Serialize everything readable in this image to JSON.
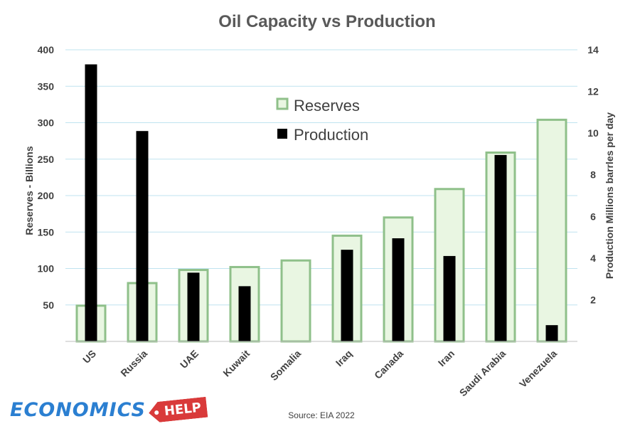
{
  "chart_data": {
    "type": "bar",
    "title": "Oil Capacity vs Production",
    "categories": [
      "US",
      "Russia",
      "UAE",
      "Kuwait",
      "Somalia",
      "Iraq",
      "Canada",
      "Iran",
      "Saudi Arabia",
      "Venezuela"
    ],
    "series": [
      {
        "name": "Reserves",
        "axis": "left",
        "color": "#8fc08a",
        "fill": "#e9f6e2",
        "values": [
          49,
          80,
          98,
          102,
          111,
          145,
          170,
          209,
          259,
          304
        ]
      },
      {
        "name": "Production",
        "axis": "right",
        "color": "#000000",
        "values": [
          13.3,
          10.1,
          3.3,
          2.65,
          null,
          4.4,
          4.95,
          4.1,
          8.95,
          0.78
        ]
      }
    ],
    "y_left": {
      "label": "Reserves - Billions",
      "range": [
        0,
        400
      ],
      "ticks": [
        50,
        100,
        150,
        200,
        250,
        300,
        350,
        400
      ]
    },
    "y_right": {
      "label": "Production Millions barrles per day",
      "range": [
        0,
        14
      ],
      "ticks": [
        2,
        4,
        6,
        8,
        10,
        12,
        14
      ]
    },
    "grid": true,
    "legend_position": "top-center",
    "source": "Source: EIA 2022"
  },
  "branding": {
    "logo_text": "ECONOMICS",
    "logo_tag": "HELP",
    "logo_color": "#2b7fd1",
    "tag_color": "#d93a3a"
  }
}
